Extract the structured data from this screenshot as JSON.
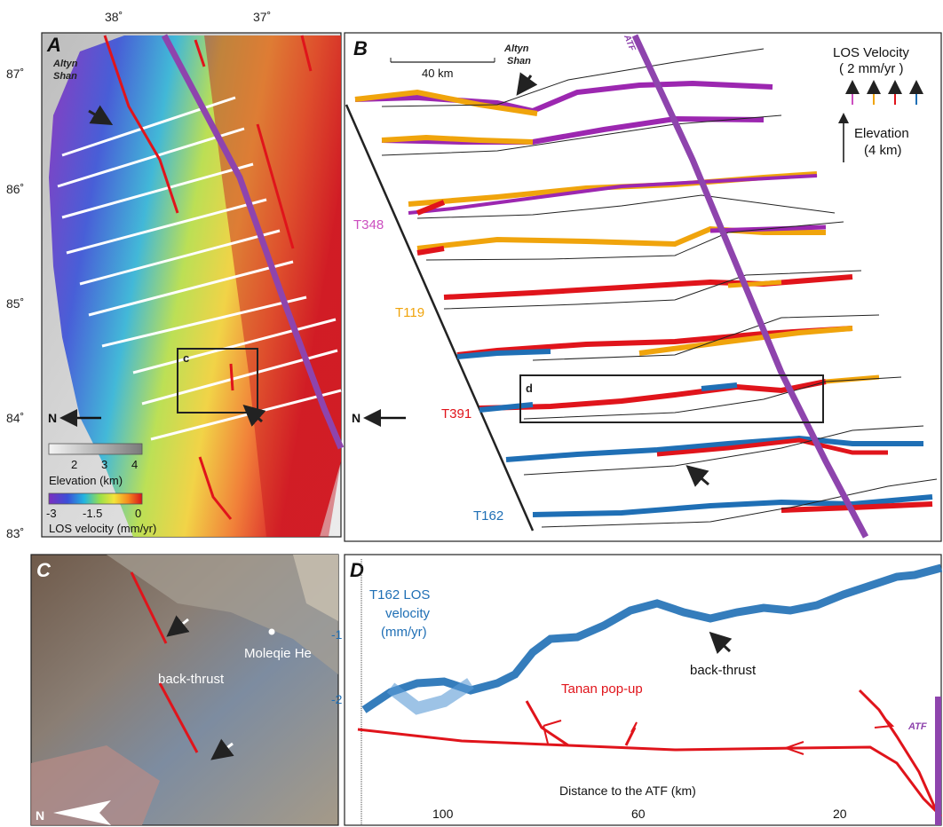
{
  "panel_a": {
    "letter": "A",
    "top_ticks": [
      "38˚",
      "37˚"
    ],
    "left_ticks": [
      "87˚",
      "86˚",
      "85˚",
      "84˚",
      "83˚"
    ],
    "place_line1": "Altyn",
    "place_line2": "Shan",
    "north": "N",
    "inset_letter": "c",
    "elev_ticks": [
      "2",
      "3",
      "4"
    ],
    "elev_title": "Elevation (km)",
    "vel_ticks": [
      "-3",
      "-1.5",
      "0"
    ],
    "vel_title": "LOS velocity (mm/yr)",
    "colors": {
      "fault": "#e0141b",
      "atf": "#8e44ad"
    }
  },
  "panel_b": {
    "letter": "B",
    "scale": "40 km",
    "place_line1": "Altyn",
    "place_line2": "Shan",
    "atf": "ATF",
    "legend_title1": "LOS Velocity",
    "legend_title2": "( 2 mm/yr )",
    "elev_label1": "Elevation",
    "elev_label2": "(4 km)",
    "north": "N",
    "inset_letter": "d",
    "tracks": [
      {
        "name": "T348",
        "color": "#cc4fc0"
      },
      {
        "name": "T119",
        "color": "#f0a40c"
      },
      {
        "name": "T391",
        "color": "#e0141b"
      },
      {
        "name": "T162",
        "color": "#1f6fb5"
      }
    ]
  },
  "panel_c": {
    "letter": "C",
    "label_backthrust": "back-thrust",
    "label_river": "Moleqie He",
    "north": "N"
  },
  "panel_d": {
    "letter": "D",
    "velocity_title1": "T162 LOS",
    "velocity_title2": "velocity",
    "velocity_title3": "(mm/yr)",
    "y_ticks": [
      "-1",
      "-2"
    ],
    "label_backthrust": "back-thrust",
    "label_popup": "Tanan pop-up",
    "atf": "ATF",
    "x_title": "Distance to the ATF (km)",
    "x_ticks": [
      "100",
      "60",
      "20"
    ]
  }
}
